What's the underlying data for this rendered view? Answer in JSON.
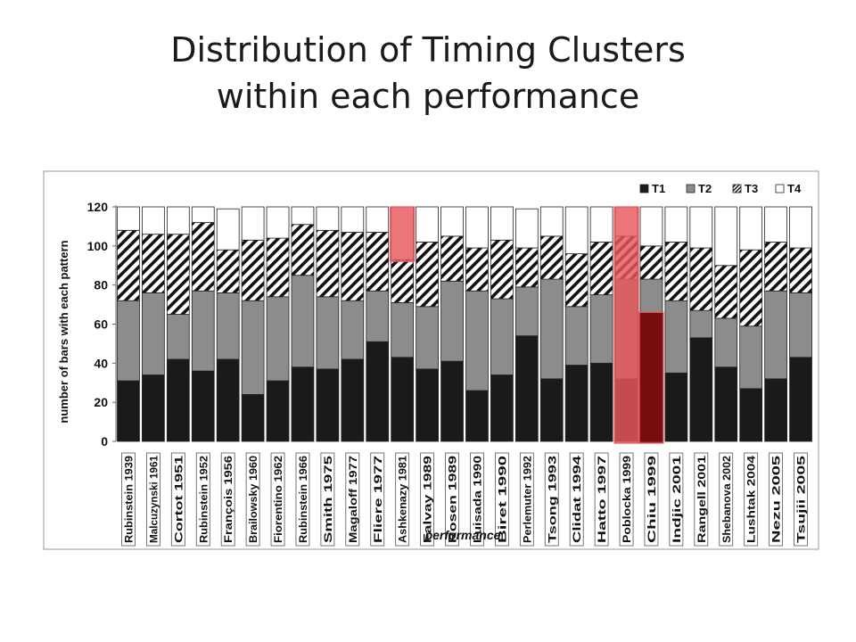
{
  "slide": {
    "title_line1": "Distribution of Timing Clusters",
    "title_line2": "within each performance"
  },
  "chart_data": {
    "type": "bar",
    "stacked": true,
    "xlabel": "performance",
    "ylabel": "number of bars with each pattern",
    "ylim": [
      0,
      120
    ],
    "yticks": [
      0,
      20,
      40,
      60,
      80,
      100,
      120
    ],
    "legend_position": "top-right",
    "categories": [
      "Rubinstein 1939",
      "Malcuzynski 1961",
      "Cortot 1951",
      "Rubinstein 1952",
      "François 1956",
      "Brailowsky 1960",
      "Fiorentino 1962",
      "Rubinstein 1966",
      "Smith 1975",
      "Magaloff 1977",
      "Fliere 1977",
      "Ashkenazy 1981",
      "Falvay 1989",
      "Rosen 1989",
      "Luisada 1990",
      "Biret 1990",
      "Perlemuter 1992",
      "Tsong 1993",
      "Clidat 1994",
      "Hatto 1997",
      "Poblocka 1999",
      "Chiu 1999",
      "Indjic 2001",
      "Rangell 2001",
      "Shebanova 2002",
      "Lushtak 2004",
      "Nezu 2005",
      "Tsujii 2005"
    ],
    "series": [
      {
        "name": "T1",
        "color": "#1a1a1a",
        "pattern": "solid",
        "values": [
          31,
          34,
          42,
          36,
          42,
          24,
          31,
          38,
          37,
          42,
          51,
          43,
          37,
          41,
          26,
          34,
          54,
          32,
          39,
          40,
          32,
          66,
          35,
          53,
          38,
          27,
          32,
          43
        ]
      },
      {
        "name": "T2",
        "color": "#8c8c8c",
        "pattern": "solid",
        "values": [
          41,
          42,
          23,
          41,
          34,
          48,
          43,
          47,
          37,
          30,
          26,
          28,
          32,
          41,
          51,
          39,
          25,
          51,
          30,
          35,
          51,
          17,
          37,
          14,
          25,
          32,
          45,
          33
        ]
      },
      {
        "name": "T3",
        "color": "#111111",
        "pattern": "diagonal-hatch",
        "values": [
          36,
          30,
          41,
          35,
          22,
          31,
          30,
          26,
          34,
          35,
          30,
          22,
          33,
          23,
          22,
          30,
          20,
          22,
          27,
          27,
          22,
          17,
          30,
          32,
          27,
          39,
          25,
          23
        ]
      },
      {
        "name": "T4",
        "color": "#ffffff",
        "pattern": "solid",
        "values": [
          12,
          14,
          14,
          8,
          21,
          17,
          16,
          9,
          12,
          13,
          13,
          27,
          18,
          15,
          21,
          17,
          20,
          15,
          24,
          18,
          15,
          20,
          18,
          21,
          30,
          22,
          18,
          21
        ]
      }
    ],
    "highlights": [
      {
        "category": "Ashkenazy 1981",
        "series": "T4",
        "color": "#e8585c"
      },
      {
        "category": "Poblocka 1999",
        "series": "all",
        "color": "#e8585c"
      },
      {
        "category": "Chiu 1999",
        "series": "T1",
        "color": "#8b0c0c"
      }
    ]
  }
}
